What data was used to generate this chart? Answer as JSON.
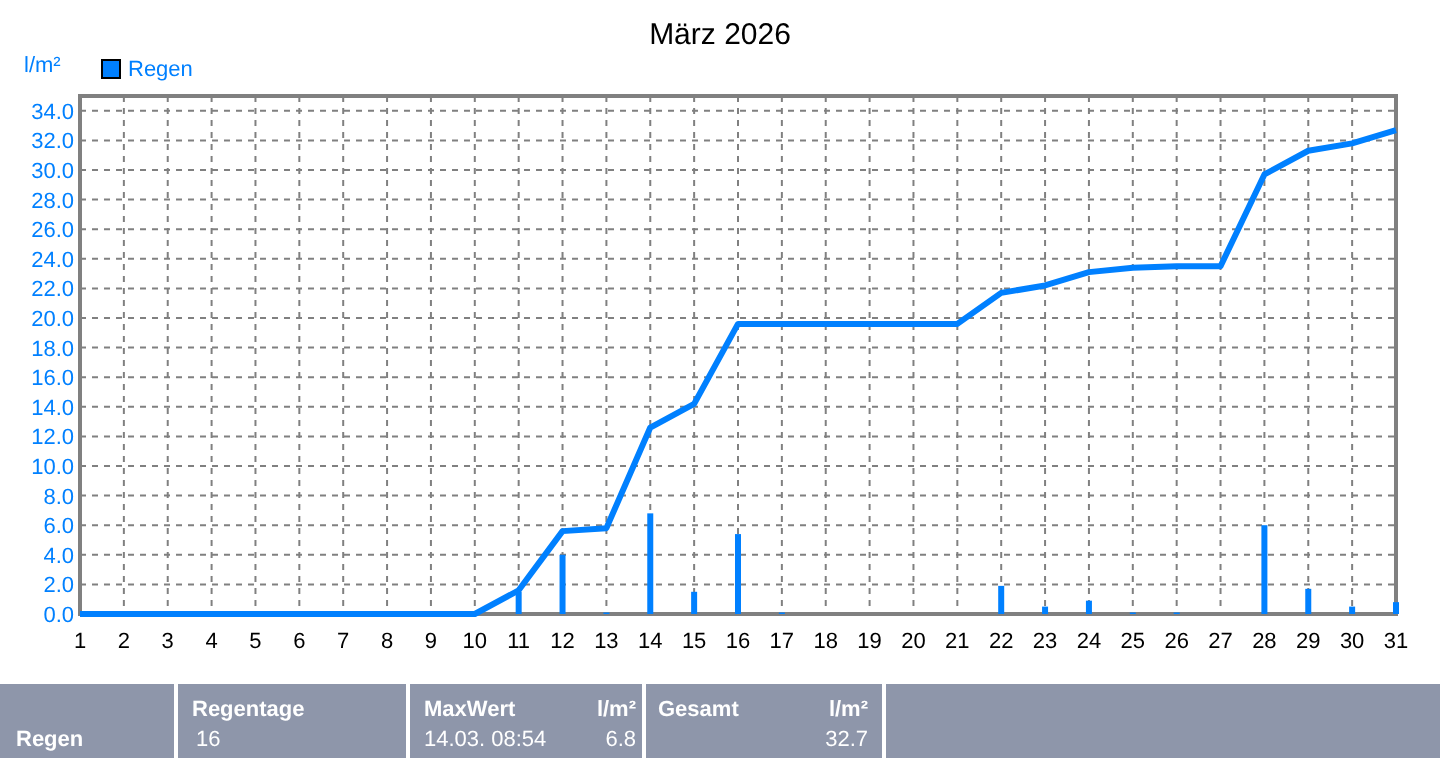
{
  "chart_data": {
    "type": "bar",
    "title": "März 2026",
    "ylabel": "l/m²",
    "xlim": [
      1,
      31
    ],
    "xticks": [
      1,
      2,
      3,
      4,
      5,
      6,
      7,
      8,
      9,
      10,
      11,
      12,
      13,
      14,
      15,
      16,
      17,
      18,
      19,
      20,
      21,
      22,
      23,
      24,
      25,
      26,
      27,
      28,
      29,
      30,
      31
    ],
    "ylim": [
      0,
      35
    ],
    "yticks": [
      {
        "value": 0,
        "label": "0.0"
      },
      {
        "value": 2,
        "label": "2.0"
      },
      {
        "value": 4,
        "label": "4.0"
      },
      {
        "value": 6,
        "label": "6.0"
      },
      {
        "value": 8,
        "label": "8.0"
      },
      {
        "value": 10,
        "label": "10.0"
      },
      {
        "value": 12,
        "label": "12.0"
      },
      {
        "value": 14,
        "label": "14.0"
      },
      {
        "value": 16,
        "label": "16.0"
      },
      {
        "value": 18,
        "label": "18.0"
      },
      {
        "value": 20,
        "label": "20.0"
      },
      {
        "value": 22,
        "label": "22.0"
      },
      {
        "value": 24,
        "label": "24.0"
      },
      {
        "value": 26,
        "label": "26.0"
      },
      {
        "value": 28,
        "label": "28.0"
      },
      {
        "value": 30,
        "label": "30.0"
      },
      {
        "value": 32,
        "label": "32.0"
      },
      {
        "value": 34,
        "label": "34.0"
      }
    ],
    "grid": true,
    "legend": "top left",
    "series": [
      {
        "name": "Regen",
        "color": "#0080ff",
        "x": [
          11,
          12,
          13,
          14,
          15,
          16,
          17,
          22,
          23,
          24,
          25,
          26,
          28,
          29,
          30,
          31
        ],
        "values": [
          1.5,
          4.0,
          0.1,
          6.8,
          1.5,
          5.4,
          0.1,
          1.9,
          0.5,
          0.9,
          0.1,
          0.1,
          6.0,
          1.7,
          0.5,
          0.8
        ]
      },
      {
        "type": "line",
        "color": "#0080ff",
        "x": [
          1,
          2,
          3,
          4,
          5,
          6,
          7,
          8,
          9,
          10,
          11,
          12,
          13,
          14,
          15,
          16,
          17,
          18,
          19,
          20,
          21,
          22,
          23,
          24,
          25,
          26,
          27,
          28,
          29,
          30,
          31
        ],
        "values": [
          0,
          0,
          0,
          0,
          0,
          0,
          0,
          0,
          0,
          0,
          1.6,
          5.6,
          5.8,
          12.6,
          14.2,
          19.6,
          19.6,
          19.6,
          19.6,
          19.6,
          19.6,
          21.7,
          22.2,
          23.1,
          23.4,
          23.5,
          23.5,
          29.7,
          31.3,
          31.8,
          32.7
        ]
      }
    ],
    "annotations": [
      "Regen",
      "Regentage",
      "16",
      "MaxWert",
      "l/m²",
      "14.03.  08:54",
      "6.8",
      "Gesamt",
      "l/m²",
      "32.7"
    ]
  }
}
